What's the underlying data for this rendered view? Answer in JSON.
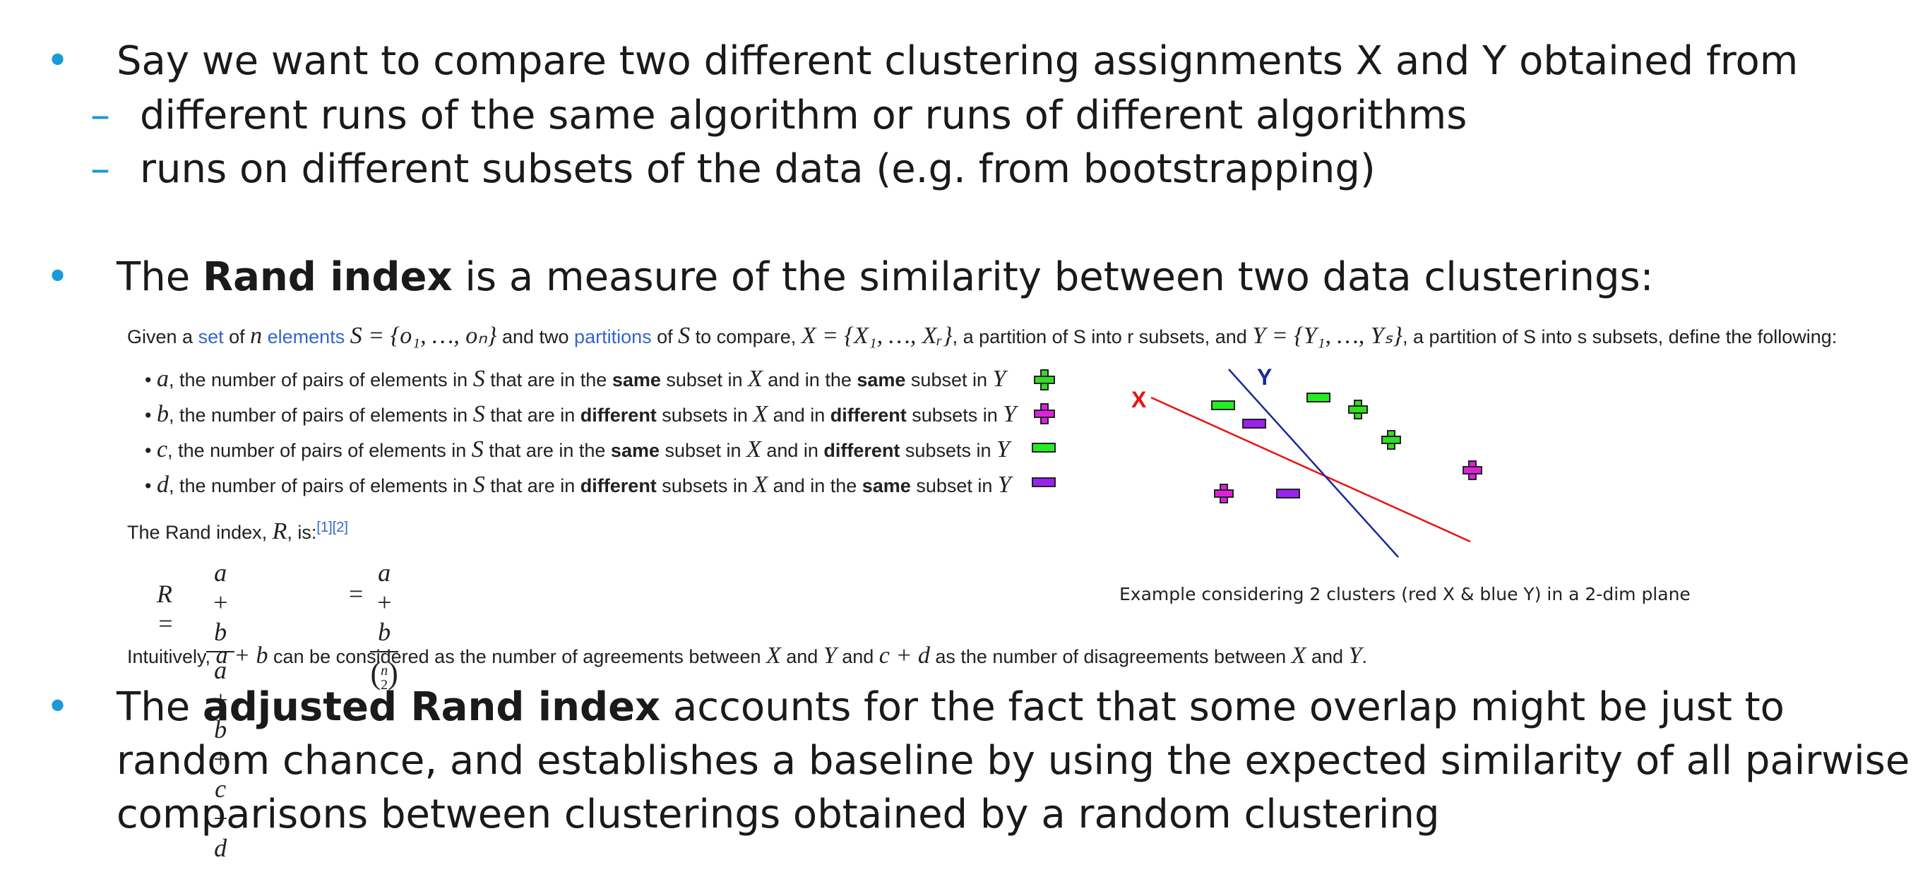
{
  "bullets": {
    "b1": "Say we want to compare two different clustering assignments X and Y obtained from",
    "b1_sub1": "different runs of the same algorithm or runs of different algorithms",
    "b1_sub2": "runs on different subsets of the data (e.g. from bootstrapping)",
    "b2_pre": "The ",
    "b2_bold": "Rand index",
    "b2_post": " is a measure of the similarity between two data clusterings:",
    "b3_pre": "The ",
    "b3_bold": "adjusted Rand index",
    "b3_line1_post": " accounts for the fact that some overlap might be just to",
    "b3_line2": "random chance, and establishes a baseline by using the expected similarity of all pairwise",
    "b3_line3": "comparisons between clusterings obtained by a random clustering",
    "bullet_glyph": "•",
    "dash_glyph": "–"
  },
  "wiki": {
    "given_1": "Given a ",
    "set_link": "set",
    "given_2": " of ",
    "n": "n",
    "elements_link": "elements",
    "S_def": "S = {o₁, …, oₙ}",
    "given_3": " and two ",
    "partitions_link": "partitions",
    "given_4": " of ",
    "S": "S",
    "given_5": " to compare, ",
    "X_def": "X = {X₁, …, Xᵣ}",
    "given_6": ", a partition of S into r subsets, and ",
    "Y_def": "Y = {Y₁, …, Yₛ}",
    "given_7": ", a partition of S into s subsets, define the following:",
    "defs": [
      {
        "var": "a",
        "t1": ", the number of pairs of elements in ",
        "t2": " that are in the ",
        "b1": "same",
        "t3": " subset in ",
        "t4": " and in the ",
        "b2": "same",
        "t5": " subset in "
      },
      {
        "var": "b",
        "t1": ", the number of pairs of elements in ",
        "t2": " that are in ",
        "b1": "different",
        "t3": " subsets in ",
        "t4": " and in ",
        "b2": "different",
        "t5": " subsets in "
      },
      {
        "var": "c",
        "t1": ", the number of pairs of elements in ",
        "t2": " that are in the ",
        "b1": "same",
        "t3": " subset in ",
        "t4": " and in ",
        "b2": "different",
        "t5": " subsets in "
      },
      {
        "var": "d",
        "t1": ", the number of pairs of elements in ",
        "t2": " that are in ",
        "b1": "different",
        "t3": " subsets in ",
        "t4": " and in the ",
        "b2": "same",
        "t5": " subset in "
      }
    ],
    "rand_is_1": "The Rand index, ",
    "R": "R",
    "rand_is_2": ", is:",
    "refs": "[1][2]",
    "formula_R": "R =",
    "frac1_num": "a + b",
    "frac1_den": "a + b + c + d",
    "eq": "=",
    "frac2_num": "a + b",
    "frac2_den_n": "n",
    "frac2_den_k": "2",
    "intuit_1": "Intuitively, ",
    "intuit_ab": "a + b",
    "intuit_2": " can be considered as the number of agreements between ",
    "intuit_X": "X",
    "intuit_3": " and ",
    "intuit_Y": "Y",
    "intuit_4": " and ",
    "intuit_cd": "c + d",
    "intuit_5": " as the number of disagreements between ",
    "intuit_X2": "X",
    "intuit_6": " and ",
    "intuit_Y2": "Y",
    "intuit_7": "."
  },
  "diagram": {
    "label_X": "X",
    "label_Y": "Y",
    "caption": "Example considering 2 clusters (red X & blue Y) in a 2-dim plane",
    "colors": {
      "plus_green": "#33dd22",
      "plus_magenta": "#dd22dd",
      "minus_green": "#22ee22",
      "minus_purple": "#9922ee",
      "line_X": "#ee1111",
      "line_Y": "#1a2a99",
      "bullet": "#1a9ad6",
      "link": "#3366cc"
    }
  }
}
